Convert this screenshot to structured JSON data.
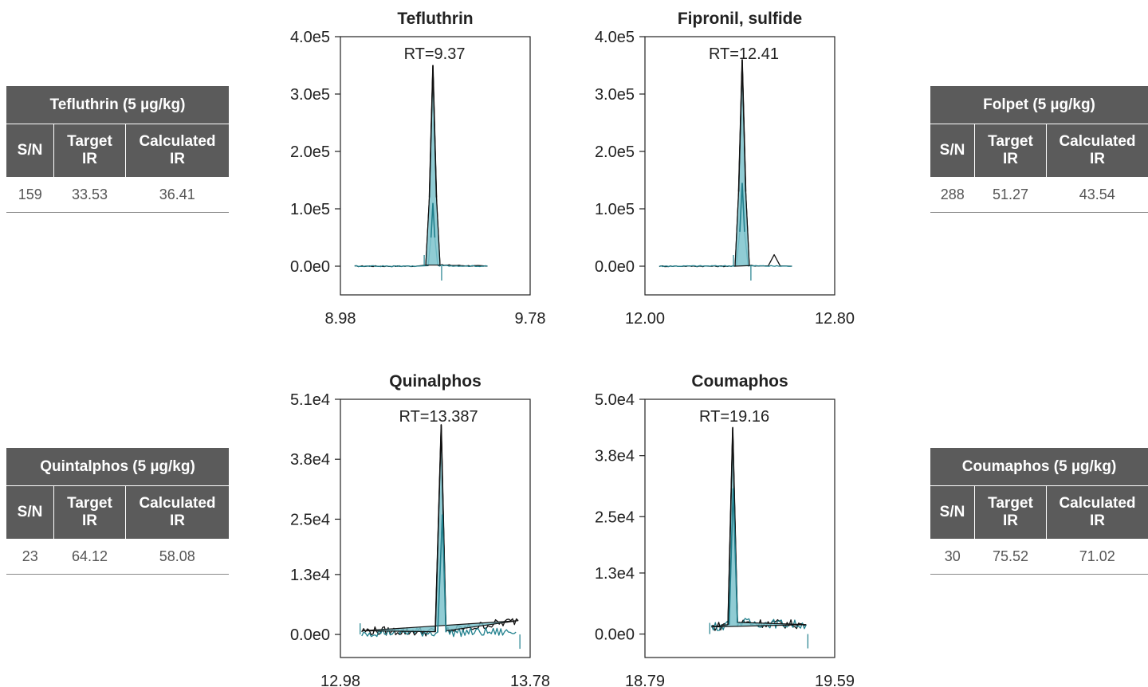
{
  "tables": [
    {
      "title": "Tefluthrin (5 µg/kg)",
      "columns": [
        "S/N",
        "Target IR",
        "Calculated IR"
      ],
      "row": [
        "159",
        "33.53",
        "36.41"
      ]
    },
    {
      "title": "Folpet (5 µg/kg)",
      "columns": [
        "S/N",
        "Target IR",
        "Calculated IR"
      ],
      "row": [
        "288",
        "51.27",
        "43.54"
      ]
    },
    {
      "title": "Quintalphos (5 µg/kg)",
      "columns": [
        "S/N",
        "Target IR",
        "Calculated IR"
      ],
      "row": [
        "23",
        "64.12",
        "58.08"
      ]
    },
    {
      "title": "Coumaphos (5 µg/kg)",
      "columns": [
        "S/N",
        "Target IR",
        "Calculated IR"
      ],
      "row": [
        "30",
        "75.52",
        "71.02"
      ]
    }
  ],
  "colors": {
    "trace_black": "#111111",
    "trace_teal": "#1f7f8c",
    "fill": "#7cc3cc",
    "marker_red": "#e03030",
    "table_header": "#5b5b5b"
  },
  "chart_data": [
    {
      "type": "line",
      "title": "Tefluthrin",
      "xlabel": "",
      "ylabel": "",
      "xlim": [
        8.98,
        9.78
      ],
      "x_ticks": [
        "8.98",
        "9.78"
      ],
      "y_ticks": [
        "4.0e5",
        "3.0e5",
        "2.0e5",
        "1.0e5",
        "0.0e0"
      ],
      "ylim": [
        -50000,
        400000
      ],
      "annotation": "RT=9.37",
      "retention_time": 9.37,
      "series": [
        {
          "values": [
            [
              9.04,
              0
            ],
            [
              9.3,
              0
            ],
            [
              9.34,
              2000
            ],
            [
              9.355,
              120000
            ],
            [
              9.37,
              350000
            ],
            [
              9.385,
              120000
            ],
            [
              9.4,
              2000
            ],
            [
              9.6,
              0
            ]
          ]
        },
        {
          "values": [
            [
              9.04,
              0
            ],
            [
              9.3,
              0
            ],
            [
              9.35,
              1000
            ],
            [
              9.362,
              50000
            ],
            [
              9.37,
              110000
            ],
            [
              9.378,
              50000
            ],
            [
              9.39,
              1000
            ],
            [
              9.6,
              0
            ]
          ]
        }
      ],
      "x_range_shown": [
        9.04,
        9.6
      ]
    },
    {
      "type": "line",
      "title": "Fipronil, sulfide",
      "xlabel": "",
      "ylabel": "",
      "xlim": [
        12.0,
        12.8
      ],
      "x_ticks": [
        "12.00",
        "12.80"
      ],
      "y_ticks": [
        "4.0e5",
        "3.0e5",
        "2.0e5",
        "1.0e5",
        "0.0e0"
      ],
      "ylim": [
        -50000,
        400000
      ],
      "annotation": "RT=12.41",
      "retention_time": 12.41,
      "series": [
        {
          "values": [
            [
              12.06,
              0
            ],
            [
              12.38,
              0
            ],
            [
              12.395,
              130000
            ],
            [
              12.41,
              360000
            ],
            [
              12.425,
              130000
            ],
            [
              12.44,
              1000
            ],
            [
              12.52,
              500
            ],
            [
              12.545,
              20000
            ],
            [
              12.57,
              500
            ],
            [
              12.62,
              0
            ]
          ]
        },
        {
          "values": [
            [
              12.06,
              0
            ],
            [
              12.385,
              500
            ],
            [
              12.4,
              60000
            ],
            [
              12.41,
              145000
            ],
            [
              12.42,
              60000
            ],
            [
              12.435,
              500
            ],
            [
              12.62,
              0
            ]
          ]
        }
      ],
      "x_range_shown": [
        12.06,
        12.62
      ]
    },
    {
      "type": "line",
      "title": "Quinalphos",
      "xlabel": "",
      "ylabel": "",
      "xlim": [
        12.98,
        13.78
      ],
      "x_ticks": [
        "12.98",
        "13.78"
      ],
      "y_ticks": [
        "5.1e4",
        "3.8e4",
        "2.5e4",
        "1.3e4",
        "0.0e0"
      ],
      "ylim": [
        -5000,
        51000
      ],
      "annotation": "RT=13.387",
      "retention_time": 13.387,
      "series": [
        {
          "values": [
            [
              13.07,
              800
            ],
            [
              13.38,
              600
            ],
            [
              13.405,
              45500
            ],
            [
              13.425,
              800
            ],
            [
              13.73,
              3000
            ]
          ]
        },
        {
          "values": [
            [
              13.07,
              500
            ],
            [
              13.39,
              500
            ],
            [
              13.41,
              26000
            ],
            [
              13.425,
              500
            ],
            [
              13.72,
              500
            ]
          ]
        }
      ],
      "x_range_shown": [
        13.07,
        13.73
      ]
    },
    {
      "type": "line",
      "title": "Coumaphos",
      "xlabel": "",
      "ylabel": "",
      "xlim": [
        18.79,
        19.59
      ],
      "x_ticks": [
        "18.79",
        "19.59"
      ],
      "y_ticks": [
        "5.0e4",
        "3.8e4",
        "2.5e4",
        "1.3e4",
        "0.0e0"
      ],
      "ylim": [
        -5000,
        50000
      ],
      "annotation": "RT=19.16",
      "retention_time": 19.16,
      "series": [
        {
          "values": [
            [
              19.07,
              1500
            ],
            [
              19.14,
              2000
            ],
            [
              19.16,
              44000
            ],
            [
              19.18,
              2500
            ],
            [
              19.47,
              2000
            ]
          ]
        },
        {
          "values": [
            [
              19.07,
              1500
            ],
            [
              19.145,
              2000
            ],
            [
              19.162,
              31000
            ],
            [
              19.18,
              2500
            ],
            [
              19.47,
              2000
            ]
          ]
        }
      ],
      "x_range_shown": [
        19.07,
        19.47
      ]
    }
  ]
}
